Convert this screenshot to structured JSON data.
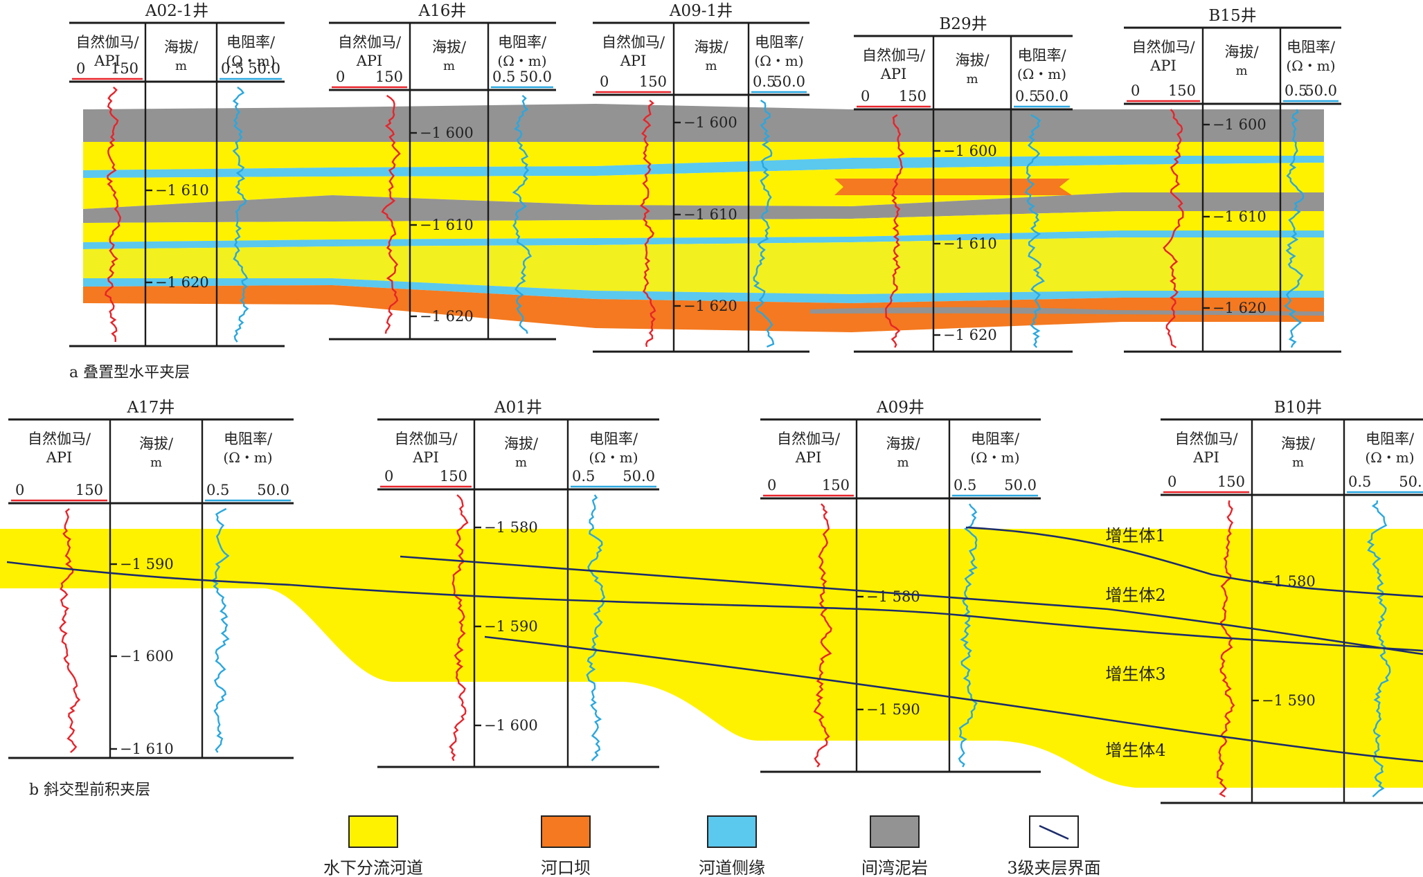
{
  "colors": {
    "sand": "#FFF200",
    "sand_light": "#F2F01E",
    "bar": "#F47920",
    "margin": "#5BC8EE",
    "shale": "#939393",
    "gr_curve": "#E8232A",
    "res_curve": "#2AA7DF",
    "line": "#1B1B1B",
    "boundary": "#1C2D6B"
  },
  "header": {
    "gr_label_1": "自然伽马/",
    "gr_label_2": "API",
    "gr_min": "0",
    "gr_max": "150",
    "alt_label_1": "海拔/",
    "alt_label_2": "m",
    "res_label_1": "电阻率/",
    "res_label_2": "(Ω・m)",
    "res_min": "0.5",
    "res_max": "50.0"
  },
  "panel_a": {
    "caption": "a 叠置型水平夹层",
    "wells": [
      {
        "name": "A02-1井",
        "depths": [
          "−1 610",
          "−1 620"
        ]
      },
      {
        "name": "A16井",
        "depths": [
          "−1 600",
          "−1 610",
          "−1 620"
        ]
      },
      {
        "name": "A09-1井",
        "depths": [
          "−1 600",
          "−1 610",
          "−1 620"
        ]
      },
      {
        "name": "B29井",
        "depths": [
          "−1 600",
          "−1 610",
          "−1 620"
        ]
      },
      {
        "name": "B15井",
        "depths": [
          "−1 600",
          "−1 610",
          "−1 620"
        ]
      }
    ]
  },
  "panel_b": {
    "caption": "b 斜交型前积夹层",
    "wells": [
      {
        "name": "A17井",
        "depths": [
          "−1 590",
          "−1 600",
          "−1 610"
        ]
      },
      {
        "name": "A01井",
        "depths": [
          "−1 580",
          "−1 590",
          "−1 600"
        ]
      },
      {
        "name": "A09井",
        "depths": [
          "−1 580",
          "−1 590"
        ]
      },
      {
        "name": "B10井",
        "depths": [
          "−1 580",
          "−1 590"
        ]
      }
    ],
    "accretion_bodies": [
      "增生体1",
      "增生体2",
      "增生体3",
      "增生体4"
    ]
  },
  "legend": [
    {
      "label": "水下分流河道",
      "kind": "sand"
    },
    {
      "label": "河口坝",
      "kind": "bar"
    },
    {
      "label": "河道侧缘",
      "kind": "margin"
    },
    {
      "label": "间湾泥岩",
      "kind": "shale"
    },
    {
      "label": "3级夹层界面",
      "kind": "boundary"
    }
  ]
}
